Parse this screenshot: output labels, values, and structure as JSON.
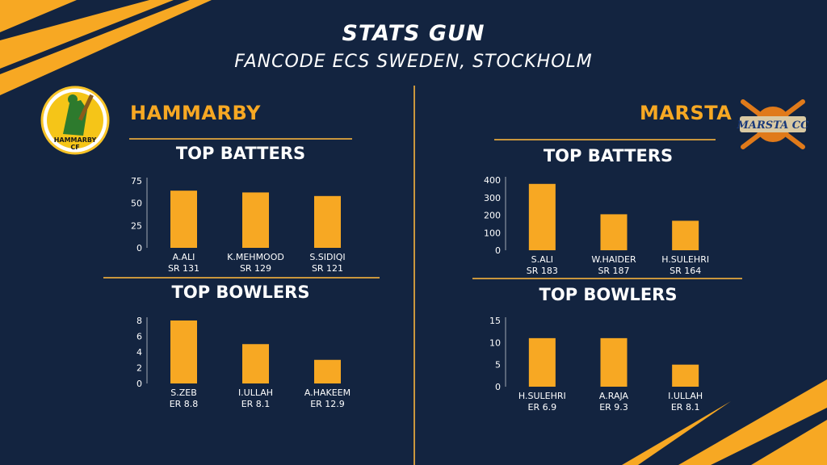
{
  "header": {
    "title": "STATS GUN",
    "subtitle": "FANCODE ECS SWEDEN, STOCKHOLM"
  },
  "colors": {
    "background": "#132440",
    "accent": "#f7a823",
    "bar": "#f7a823",
    "divider": "#c9963d",
    "text": "#ffffff"
  },
  "teams": [
    {
      "name": "HAMMARBY",
      "logo_text": [
        "HAMMARBY",
        "CF"
      ],
      "batters_heading": "TOP BATTERS",
      "bowlers_heading": "TOP BOWLERS"
    },
    {
      "name": "MARSTA",
      "logo_text": [
        "MARSTA CC"
      ],
      "batters_heading": "TOP BATTERS",
      "bowlers_heading": "TOP BOWLERS"
    }
  ],
  "chart_data": [
    {
      "type": "bar",
      "team": "HAMMARBY",
      "title": "TOP BATTERS",
      "categories": [
        "A.ALI",
        "K.MEHMOOD",
        "S.SIDIQI"
      ],
      "sublabels": [
        "SR 131",
        "SR 129",
        "SR 121"
      ],
      "values": [
        64,
        62,
        58
      ],
      "ylim": [
        0,
        75
      ],
      "yticks": [
        0,
        25,
        50,
        75
      ]
    },
    {
      "type": "bar",
      "team": "HAMMARBY",
      "title": "TOP BOWLERS",
      "categories": [
        "S.ZEB",
        "I.ULLAH",
        "A.HAKEEM"
      ],
      "sublabels": [
        "ER 8.8",
        "ER 8.1",
        "ER 12.9"
      ],
      "values": [
        8,
        5,
        3
      ],
      "ylim": [
        0,
        8
      ],
      "yticks": [
        0,
        2,
        4,
        6,
        8
      ]
    },
    {
      "type": "bar",
      "team": "MARSTA",
      "title": "TOP BATTERS",
      "categories": [
        "S.ALI",
        "W.HAIDER",
        "H.SULEHRI"
      ],
      "sublabels": [
        "SR 183",
        "SR 187",
        "SR 164"
      ],
      "values": [
        378,
        205,
        168
      ],
      "ylim": [
        0,
        400
      ],
      "yticks": [
        0,
        100,
        200,
        300,
        400
      ]
    },
    {
      "type": "bar",
      "team": "MARSTA",
      "title": "TOP BOWLERS",
      "categories": [
        "H.SULEHRI",
        "A.RAJA",
        "I.ULLAH"
      ],
      "sublabels": [
        "ER 6.9",
        "ER 9.3",
        "ER 8.1"
      ],
      "values": [
        11,
        11,
        5
      ],
      "ylim": [
        0,
        15
      ],
      "yticks": [
        0,
        5,
        10,
        15
      ]
    }
  ]
}
